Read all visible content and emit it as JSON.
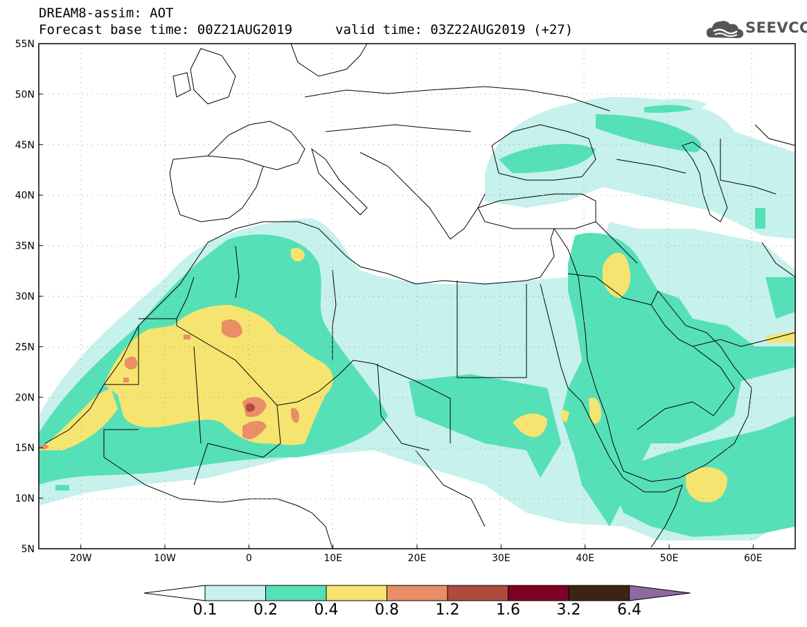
{
  "header": {
    "title_line1": "DREAM8-assim: AOT",
    "title_line2": "Forecast base time: 00Z21AUG2019",
    "valid_time": "valid time: 03Z22AUG2019 (+27)",
    "logo_text": "SEEVCCC"
  },
  "map": {
    "lon_range": [
      -25,
      65
    ],
    "lat_range": [
      5,
      55
    ],
    "lat_ticks": [
      {
        "value": 55,
        "label": "55N"
      },
      {
        "value": 50,
        "label": "50N"
      },
      {
        "value": 45,
        "label": "45N"
      },
      {
        "value": 40,
        "label": "40N"
      },
      {
        "value": 35,
        "label": "35N"
      },
      {
        "value": 30,
        "label": "30N"
      },
      {
        "value": 25,
        "label": "25N"
      },
      {
        "value": 20,
        "label": "20N"
      },
      {
        "value": 15,
        "label": "15N"
      },
      {
        "value": 10,
        "label": "10N"
      },
      {
        "value": 5,
        "label": "5N"
      }
    ],
    "lon_ticks": [
      {
        "value": -20,
        "label": "20W"
      },
      {
        "value": -10,
        "label": "10W"
      },
      {
        "value": 0,
        "label": "0"
      },
      {
        "value": 10,
        "label": "10E"
      },
      {
        "value": 20,
        "label": "20E"
      },
      {
        "value": 30,
        "label": "30E"
      },
      {
        "value": 40,
        "label": "40E"
      },
      {
        "value": 50,
        "label": "50E"
      },
      {
        "value": 60,
        "label": "60E"
      }
    ]
  },
  "colorbar": {
    "low_color": "#ffffff",
    "high_color": "#8e6aa3",
    "colors": [
      "#c6f1ec",
      "#56e0b8",
      "#f6e470",
      "#e98e66",
      "#ae4b3f",
      "#7c0225",
      "#3d2314"
    ],
    "labels": [
      "0.1",
      "0.2",
      "0.4",
      "0.8",
      "1.2",
      "1.6",
      "3.2",
      "6.4"
    ]
  }
}
